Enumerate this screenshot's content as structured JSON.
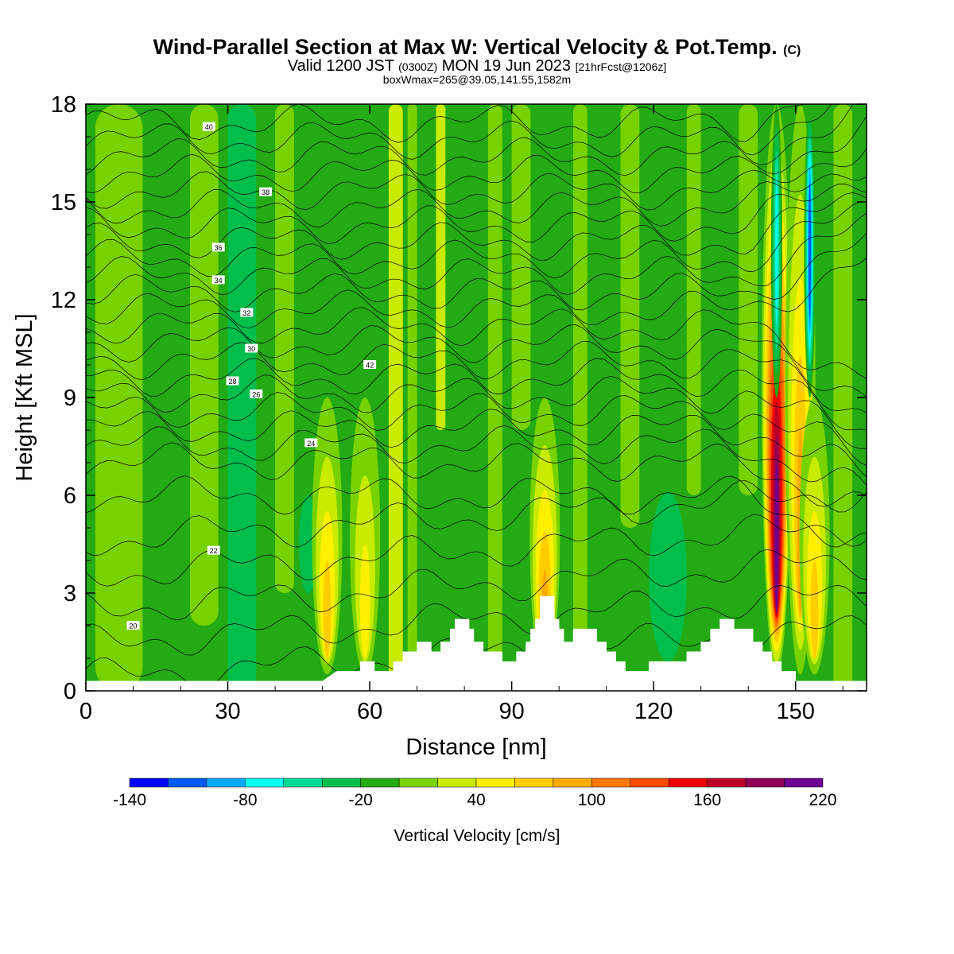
{
  "title": {
    "main": "Wind-Parallel Section at Max W: Vertical Velocity & Pot.Temp.",
    "copyright": "(C)",
    "valid_prefix": "Valid 1200 JST",
    "valid_z": "(0300Z)",
    "valid_date": "MON 19 Jun 2023",
    "forecast": "[21hrFcst@1206z]",
    "box_info": "boxWmax=265@39.05,141.55,1582m"
  },
  "chart_data": {
    "type": "heatmap",
    "xlabel": "Distance [nm]",
    "ylabel": "Height [Kft MSL]",
    "xlim": [
      0,
      165
    ],
    "ylim": [
      0,
      18
    ],
    "x_ticks": [
      0,
      30,
      60,
      90,
      120,
      150
    ],
    "y_ticks": [
      0,
      3,
      6,
      9,
      12,
      15,
      18
    ],
    "colorbar": {
      "label": "Vertical Velocity [cm/s]",
      "min": -140,
      "max": 220,
      "step": 20,
      "tick_labels": [
        "-140",
        "-80",
        "-20",
        "40",
        "100",
        "160",
        "220"
      ],
      "colors": [
        "#0000ff",
        "#005af5",
        "#00aaff",
        "#00ffee",
        "#00dc96",
        "#00be4b",
        "#23aa14",
        "#78d200",
        "#c8eb00",
        "#fff000",
        "#ffcd00",
        "#ffaa00",
        "#ff7800",
        "#ff4b00",
        "#f00000",
        "#be0028",
        "#910055",
        "#6e0091"
      ]
    },
    "updraft_columns": [
      {
        "x": 51,
        "w_max": 90
      },
      {
        "x": 59,
        "w_max": 70
      },
      {
        "x": 97,
        "w_max": 110
      },
      {
        "x": 146,
        "w_max": 220
      },
      {
        "x": 151,
        "w_max": 100
      },
      {
        "x": 154,
        "w_max": 80
      }
    ],
    "downdraft_columns": [
      {
        "x": 146,
        "w_min": -80
      },
      {
        "x": 153,
        "w_min": -120
      }
    ],
    "theta_contour_labels": [
      "20",
      "22",
      "24",
      "26",
      "28",
      "30",
      "32",
      "34",
      "36",
      "38",
      "40",
      "42"
    ],
    "terrain_kft": [
      [
        0,
        0.3
      ],
      [
        50,
        0.3
      ],
      [
        53,
        0.6
      ],
      [
        58,
        0.6
      ],
      [
        58,
        0.9
      ],
      [
        61,
        0.9
      ],
      [
        61,
        0.6
      ],
      [
        65,
        0.6
      ],
      [
        65,
        0.9
      ],
      [
        67,
        0.9
      ],
      [
        67,
        1.2
      ],
      [
        70,
        1.2
      ],
      [
        70,
        1.5
      ],
      [
        73,
        1.5
      ],
      [
        73,
        1.2
      ],
      [
        75,
        1.2
      ],
      [
        75,
        1.5
      ],
      [
        77,
        1.5
      ],
      [
        77,
        1.9
      ],
      [
        78,
        1.9
      ],
      [
        78,
        2.2
      ],
      [
        81,
        2.2
      ],
      [
        81,
        1.9
      ],
      [
        82,
        1.9
      ],
      [
        82,
        1.5
      ],
      [
        84,
        1.5
      ],
      [
        84,
        1.2
      ],
      [
        88,
        1.2
      ],
      [
        88,
        0.9
      ],
      [
        91,
        0.9
      ],
      [
        91,
        1.2
      ],
      [
        93,
        1.2
      ],
      [
        93,
        1.5
      ],
      [
        94,
        1.5
      ],
      [
        94,
        1.9
      ],
      [
        95,
        1.9
      ],
      [
        95,
        2.2
      ],
      [
        96,
        2.2
      ],
      [
        96,
        2.9
      ],
      [
        99,
        2.9
      ],
      [
        99,
        2.2
      ],
      [
        100,
        2.2
      ],
      [
        100,
        1.9
      ],
      [
        101,
        1.9
      ],
      [
        101,
        1.5
      ],
      [
        103,
        1.5
      ],
      [
        103,
        1.9
      ],
      [
        108,
        1.9
      ],
      [
        108,
        1.5
      ],
      [
        110,
        1.5
      ],
      [
        110,
        1.2
      ],
      [
        112,
        1.2
      ],
      [
        112,
        0.9
      ],
      [
        114,
        0.9
      ],
      [
        114,
        0.6
      ],
      [
        119,
        0.6
      ],
      [
        119,
        0.9
      ],
      [
        127,
        0.9
      ],
      [
        127,
        1.2
      ],
      [
        130,
        1.2
      ],
      [
        130,
        1.5
      ],
      [
        132,
        1.5
      ],
      [
        132,
        1.9
      ],
      [
        134,
        1.9
      ],
      [
        134,
        2.2
      ],
      [
        137,
        2.2
      ],
      [
        137,
        1.9
      ],
      [
        141,
        1.9
      ],
      [
        141,
        1.5
      ],
      [
        143,
        1.5
      ],
      [
        143,
        1.2
      ],
      [
        145,
        1.2
      ],
      [
        145,
        0.9
      ],
      [
        147,
        0.9
      ],
      [
        147,
        0.6
      ],
      [
        150,
        0.6
      ],
      [
        150,
        0.3
      ],
      [
        165,
        0.3
      ]
    ]
  }
}
